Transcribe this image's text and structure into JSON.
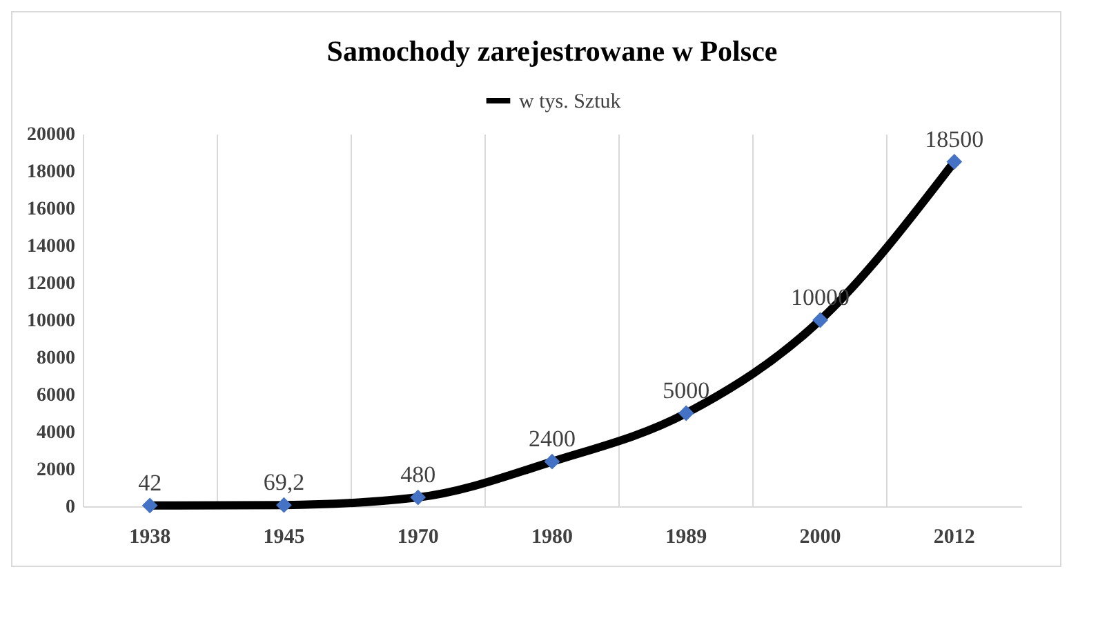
{
  "chart_data": {
    "type": "line",
    "title": "Samochody zarejestrowane w Polsce",
    "categories": [
      "1938",
      "1945",
      "1970",
      "1980",
      "1989",
      "2000",
      "2012"
    ],
    "series": [
      {
        "name": "w tys. Sztuk",
        "color": "#000000",
        "values": [
          42,
          69.2,
          480,
          2400,
          5000,
          10000,
          18500
        ],
        "value_labels": [
          "42",
          "69,2",
          "480",
          "2400",
          "5000",
          "10000",
          "18500"
        ]
      }
    ],
    "ylim": [
      0,
      20000
    ],
    "yticks": [
      0,
      2000,
      4000,
      6000,
      8000,
      10000,
      12000,
      14000,
      16000,
      18000,
      20000
    ],
    "grid": "x",
    "legend": "top",
    "marker": "diamond"
  }
}
